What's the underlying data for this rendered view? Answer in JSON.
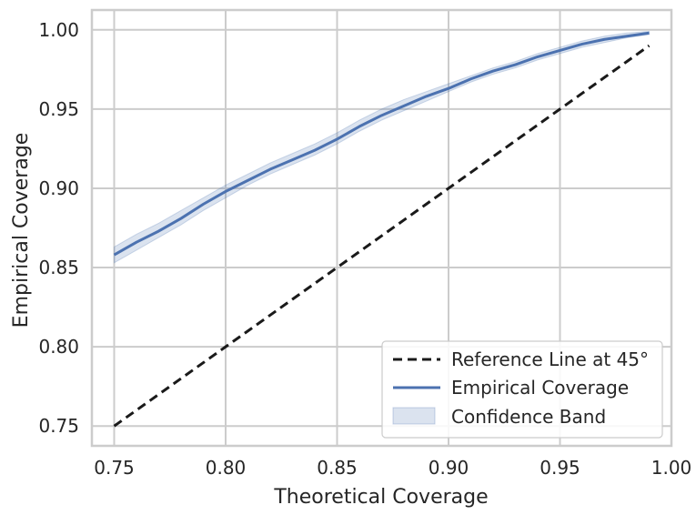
{
  "chart_data": {
    "type": "line",
    "xlabel": "Theoretical Coverage",
    "ylabel": "Empirical Coverage",
    "xlim": [
      0.74,
      1.0
    ],
    "ylim": [
      0.7375,
      1.0125
    ],
    "x_ticks": [
      "0.75",
      "0.80",
      "0.85",
      "0.90",
      "0.95",
      "1.00"
    ],
    "y_ticks": [
      "0.75",
      "0.80",
      "0.85",
      "0.90",
      "0.95",
      "1.00"
    ],
    "grid": true,
    "legend_position": "lower-right",
    "x": [
      0.75,
      0.76,
      0.77,
      0.78,
      0.79,
      0.8,
      0.81,
      0.82,
      0.83,
      0.84,
      0.85,
      0.86,
      0.87,
      0.88,
      0.89,
      0.9,
      0.91,
      0.92,
      0.93,
      0.94,
      0.95,
      0.96,
      0.97,
      0.98,
      0.99
    ],
    "series": [
      {
        "name": "Reference Line at 45°",
        "style": "dashed",
        "color": "#1a1a1a",
        "values": [
          0.75,
          0.76,
          0.77,
          0.78,
          0.79,
          0.8,
          0.81,
          0.82,
          0.83,
          0.84,
          0.85,
          0.86,
          0.87,
          0.88,
          0.89,
          0.9,
          0.91,
          0.92,
          0.93,
          0.94,
          0.95,
          0.96,
          0.97,
          0.98,
          0.99
        ]
      },
      {
        "name": "Empirical Coverage",
        "style": "solid",
        "color": "#4c72b0",
        "values": [
          0.858,
          0.866,
          0.873,
          0.881,
          0.89,
          0.898,
          0.905,
          0.912,
          0.918,
          0.924,
          0.931,
          0.939,
          0.946,
          0.952,
          0.958,
          0.963,
          0.969,
          0.974,
          0.978,
          0.983,
          0.987,
          0.991,
          0.994,
          0.996,
          0.998
        ],
        "band_name": "Confidence Band",
        "band_color": "#4c72b0",
        "band_lower": [
          0.853,
          0.861,
          0.869,
          0.877,
          0.886,
          0.894,
          0.902,
          0.909,
          0.915,
          0.921,
          0.928,
          0.936,
          0.943,
          0.949,
          0.955,
          0.961,
          0.967,
          0.972,
          0.976,
          0.981,
          0.985,
          0.989,
          0.992,
          0.995,
          0.997
        ],
        "band_upper": [
          0.863,
          0.871,
          0.878,
          0.886,
          0.894,
          0.902,
          0.909,
          0.916,
          0.922,
          0.928,
          0.935,
          0.943,
          0.95,
          0.956,
          0.961,
          0.966,
          0.971,
          0.976,
          0.98,
          0.985,
          0.989,
          0.993,
          0.996,
          0.998,
          0.999
        ]
      }
    ],
    "colors": {
      "grid": "#cccccc",
      "frame": "#cccccc",
      "text": "#262626"
    }
  }
}
